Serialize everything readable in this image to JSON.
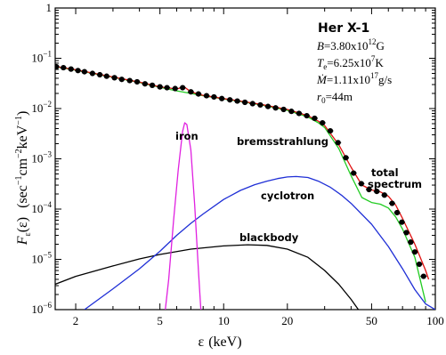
{
  "chart_data": {
    "type": "line",
    "title": "Her X-1",
    "parameters": [
      {
        "symbol": "B",
        "value": "=3.80x10",
        "exp": "12",
        "unit": "G"
      },
      {
        "symbol": "T",
        "sub": "e",
        "value": "=6.25x10",
        "exp": "7",
        "unit": "K"
      },
      {
        "symbol": "Ṁ",
        "value": "=1.11x10",
        "exp": "17",
        "unit": "g/s"
      },
      {
        "symbol": "r",
        "sub": "0",
        "value": "=44m",
        "exp": "",
        "unit": ""
      }
    ],
    "xlabel": "ε (keV)",
    "ylabel": "F_ε(ε)  (sec⁻¹cm⁻²keV⁻¹)",
    "x_scale": "log",
    "y_scale": "log",
    "xlim": [
      1.6,
      100
    ],
    "ylim": [
      1e-06,
      1
    ],
    "x_tick_labels": [
      "2",
      "5",
      "10",
      "20",
      "50",
      "100"
    ],
    "y_tick_labels": [
      {
        "base": "1",
        "exp": ""
      },
      {
        "base": "10",
        "exp": "−1"
      },
      {
        "base": "10",
        "exp": "−2"
      },
      {
        "base": "10",
        "exp": "−3"
      },
      {
        "base": "10",
        "exp": "−4"
      },
      {
        "base": "10",
        "exp": "−5"
      },
      {
        "base": "10",
        "exp": "−6"
      }
    ],
    "annotations": {
      "iron": "iron",
      "bremsstrahlung": "bremsstrahlung",
      "total_line1": "total",
      "total_line2": "spectrum",
      "cyclotron": "cyclotron",
      "blackbody": "blackbody"
    },
    "series": [
      {
        "key": "blackbody",
        "name": "blackbody",
        "color": "#000000",
        "x": [
          1.6,
          2,
          3,
          4,
          5,
          7,
          10,
          13,
          16,
          20,
          25,
          30,
          35,
          40,
          45
        ],
        "y": [
          3.2e-06,
          4.6e-06,
          7.4e-06,
          1.02e-05,
          1.25e-05,
          1.6e-05,
          1.85e-05,
          1.95e-05,
          1.9e-05,
          1.6e-05,
          1.1e-05,
          6e-06,
          3.2e-06,
          1.6e-06,
          8e-07
        ]
      },
      {
        "key": "cyclotron",
        "name": "cyclotron",
        "color": "#1f2fd6",
        "x": [
          2.2,
          3,
          4,
          5,
          6,
          7,
          8,
          10,
          12,
          14,
          16,
          18,
          20,
          22,
          25,
          28,
          32,
          36,
          40,
          50,
          60,
          70,
          80,
          90,
          100
        ],
        "y": [
          1e-06,
          2.6e-06,
          6.5e-06,
          1.45e-05,
          3e-05,
          5.2e-05,
          8e-05,
          0.000155,
          0.000235,
          0.000305,
          0.00036,
          0.000405,
          0.000435,
          0.000445,
          0.000425,
          0.00036,
          0.00027,
          0.00019,
          0.00013,
          5e-05,
          1.8e-05,
          6.5e-06,
          2.5e-06,
          1.3e-06,
          1e-06
        ]
      },
      {
        "key": "iron",
        "name": "iron",
        "color": "#e020e0",
        "x": [
          5.3,
          5.5,
          5.8,
          6.1,
          6.4,
          6.55,
          6.7,
          7.0,
          7.3,
          7.6,
          7.8
        ],
        "y": [
          1e-06,
          4e-06,
          6e-05,
          0.0006,
          0.0035,
          0.0052,
          0.0048,
          0.0015,
          0.00012,
          6e-06,
          1e-06
        ]
      },
      {
        "key": "bremsstrahlung",
        "name": "bremsstrahlung",
        "color": "#22cc22",
        "x": [
          1.6,
          2,
          3,
          4,
          5,
          6,
          7,
          8,
          10,
          12,
          15,
          20,
          25,
          28,
          30,
          35,
          40,
          45,
          50,
          55,
          60,
          65,
          70,
          80,
          90
        ],
        "y": [
          0.068,
          0.058,
          0.042,
          0.033,
          0.0265,
          0.0225,
          0.02,
          0.018,
          0.0155,
          0.0138,
          0.0118,
          0.0092,
          0.0068,
          0.0052,
          0.0042,
          0.0016,
          0.00046,
          0.00017,
          0.000135,
          0.000125,
          0.000105,
          7e-05,
          4e-05,
          1.1e-05,
          1.4e-06
        ]
      },
      {
        "key": "total",
        "name": "total spectrum",
        "color": "#e01010",
        "x": [
          1.6,
          2,
          3,
          4,
          5,
          6,
          6.5,
          7,
          8,
          10,
          12,
          15,
          20,
          25,
          28,
          30,
          35,
          40,
          45,
          50,
          55,
          60,
          65,
          70,
          80,
          90,
          93
        ],
        "y": [
          0.069,
          0.059,
          0.0425,
          0.0335,
          0.027,
          0.0245,
          0.027,
          0.0215,
          0.0183,
          0.0158,
          0.0141,
          0.0121,
          0.0096,
          0.0072,
          0.0056,
          0.0046,
          0.0019,
          0.00068,
          0.0003,
          0.00024,
          0.00022,
          0.00018,
          0.00012,
          6.5e-05,
          2e-05,
          6e-06,
          4e-06
        ]
      },
      {
        "key": "data",
        "name": "",
        "color": "#000000",
        "marker": "point",
        "x": [
          1.62,
          1.75,
          1.9,
          2.05,
          2.2,
          2.4,
          2.6,
          2.8,
          3.05,
          3.3,
          3.6,
          3.9,
          4.25,
          4.6,
          5.0,
          5.4,
          5.9,
          6.4,
          7.0,
          7.6,
          8.3,
          9.0,
          9.8,
          10.7,
          11.6,
          12.6,
          13.7,
          14.9,
          16.2,
          17.6,
          19.2,
          20.9,
          22.7,
          24.7,
          26.9,
          29.3,
          31.9,
          34.7,
          37.8,
          41.1,
          44.7,
          48.6,
          52.9,
          57.5,
          62.5,
          66.0,
          69.5,
          73.0,
          76.5,
          80.0,
          84.0,
          88.0
        ],
        "y": [
          0.068,
          0.065,
          0.061,
          0.057,
          0.054,
          0.05,
          0.047,
          0.044,
          0.041,
          0.038,
          0.036,
          0.034,
          0.031,
          0.029,
          0.027,
          0.026,
          0.025,
          0.026,
          0.0215,
          0.0195,
          0.018,
          0.017,
          0.0158,
          0.0149,
          0.0141,
          0.0133,
          0.0125,
          0.0118,
          0.011,
          0.0103,
          0.0096,
          0.0088,
          0.008,
          0.0072,
          0.0064,
          0.0052,
          0.0036,
          0.0021,
          0.00105,
          0.00052,
          0.00032,
          0.000245,
          0.000225,
          0.00019,
          0.00013,
          8.5e-05,
          5.5e-05,
          3.4e-05,
          2.2e-05,
          1.4e-05,
          8e-06,
          4.6e-06
        ]
      }
    ]
  }
}
